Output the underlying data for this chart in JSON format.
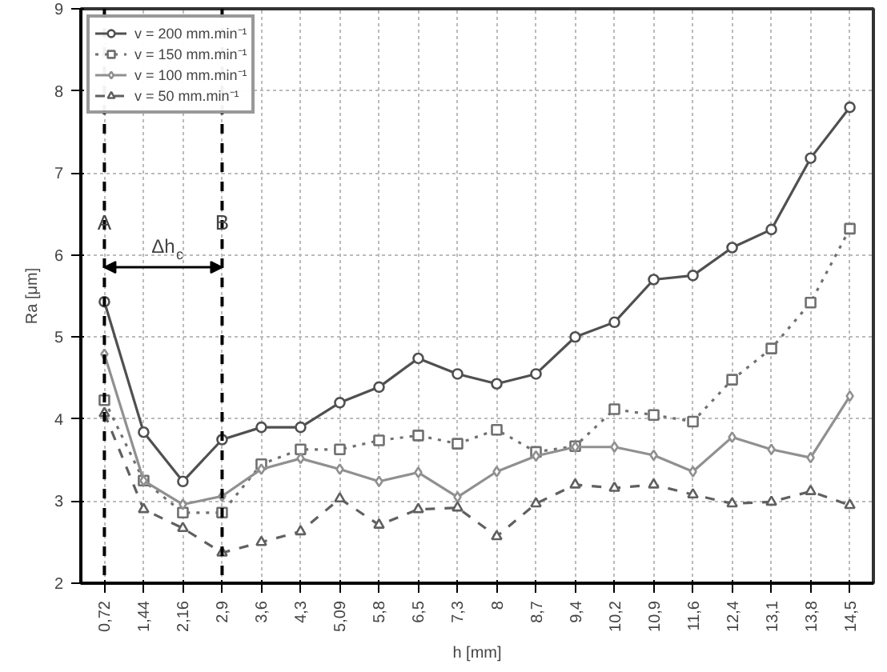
{
  "chart_data": {
    "type": "line",
    "xlabel": "h [mm]",
    "ylabel": "Ra [μm]",
    "categories": [
      "0,72",
      "1,44",
      "2,16",
      "2,9",
      "3,6",
      "4,3",
      "5,09",
      "5,8",
      "6,5",
      "7,3",
      "8",
      "8,7",
      "9,4",
      "10,2",
      "10,9",
      "11,6",
      "12,4",
      "13,1",
      "13,8",
      "14,5"
    ],
    "series": [
      {
        "name": "v = 200 mm.min⁻¹",
        "color": "#505050",
        "marker": "circle",
        "line_style": "solid",
        "values": [
          5.43,
          3.84,
          3.24,
          3.75,
          3.9,
          3.9,
          4.2,
          4.39,
          4.74,
          4.55,
          4.43,
          4.55,
          5.0,
          5.18,
          5.7,
          5.75,
          6.09,
          6.31,
          7.18,
          7.8
        ]
      },
      {
        "name": "v = 150 mm.min⁻¹",
        "color": "#707070",
        "marker": "square",
        "line_style": "dotted",
        "values": [
          4.23,
          3.25,
          2.86,
          2.86,
          3.45,
          3.63,
          3.63,
          3.74,
          3.8,
          3.7,
          3.87,
          3.6,
          3.67,
          4.12,
          4.05,
          3.97,
          4.48,
          4.86,
          5.42,
          6.32
        ]
      },
      {
        "name": "v = 100 mm.min⁻¹",
        "color": "#909090",
        "marker": "diamond",
        "line_style": "solid",
        "values": [
          4.79,
          3.25,
          2.96,
          3.06,
          3.39,
          3.52,
          3.39,
          3.24,
          3.35,
          3.05,
          3.36,
          3.55,
          3.66,
          3.66,
          3.56,
          3.36,
          3.78,
          3.63,
          3.53,
          4.28
        ]
      },
      {
        "name": "v = 50 mm.min⁻¹",
        "color": "#606060",
        "marker": "triangle",
        "line_style": "dashed",
        "values": [
          4.07,
          2.9,
          2.67,
          2.37,
          2.5,
          2.63,
          3.03,
          2.71,
          2.9,
          2.92,
          2.57,
          2.97,
          3.2,
          3.16,
          3.2,
          3.08,
          2.97,
          2.99,
          3.12,
          2.95
        ]
      }
    ],
    "ylim": [
      2,
      9
    ],
    "yticks": [
      2,
      3,
      4,
      5,
      6,
      7,
      8,
      9
    ],
    "grid": true,
    "legend": "top left",
    "ref_lines": [
      {
        "axis": "x",
        "value": "0,72",
        "label": "A",
        "color": "#000000",
        "line_style": "dashed"
      },
      {
        "axis": "x",
        "value": "2,9",
        "label": "B",
        "color": "#000000",
        "line_style": "dashed"
      }
    ],
    "annotations": [
      "Δh$_{c}$"
    ]
  }
}
